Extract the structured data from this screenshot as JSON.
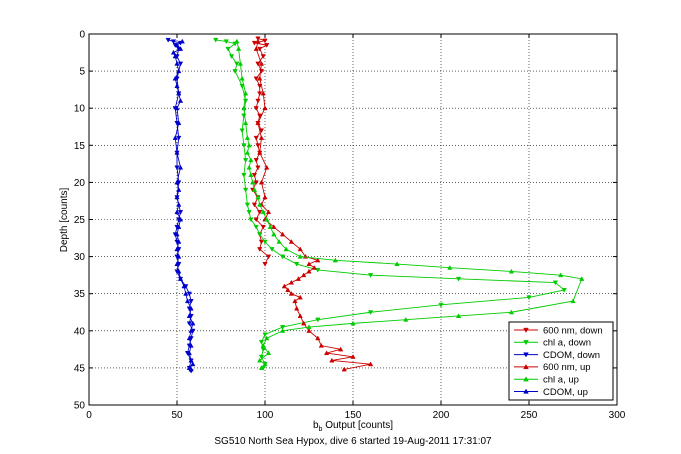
{
  "chart_data": {
    "type": "line",
    "xlabel_main": "b",
    "xlabel_sub": "b",
    "xlabel_rest": " Output [counts]",
    "ylabel": "Depth [counts]",
    "caption": "SG510 North Sea Hypox, dive 6 started 19-Aug-2011 17:31:07",
    "xlim": [
      0,
      300
    ],
    "ylim": [
      0,
      50
    ],
    "y_reversed": true,
    "grid": true,
    "grid_style": "dotted",
    "xticks": [
      0,
      50,
      100,
      150,
      200,
      250,
      300
    ],
    "yticks": [
      0,
      5,
      10,
      15,
      20,
      25,
      30,
      35,
      40,
      45,
      50
    ],
    "legend_position": "bottom-right",
    "series": [
      {
        "name": "600 nm, down",
        "color": "#cc0000",
        "marker": "triangle-down",
        "x": [
          96,
          100,
          94,
          101,
          97,
          99,
          96,
          98,
          95,
          97,
          97,
          96,
          95,
          97,
          96,
          98,
          95,
          96,
          97,
          95,
          96,
          94,
          95,
          93,
          96,
          94,
          97,
          95,
          99,
          97,
          98,
          97,
          102,
          100
        ],
        "y": [
          0.6,
          0.9,
          1.2,
          1.5,
          2.0,
          3.0,
          4.0,
          5.0,
          6.0,
          7.0,
          8.0,
          9.0,
          10.0,
          11.0,
          12.0,
          13.0,
          14.0,
          15.0,
          16.0,
          17.0,
          18.0,
          19.0,
          20.0,
          21.0,
          22.0,
          23.0,
          24.0,
          25.0,
          26.0,
          27.0,
          28.0,
          29.0,
          30.0,
          31.0
        ]
      },
      {
        "name": "chl a, down",
        "color": "#00cc00",
        "marker": "triangle-down",
        "x": [
          72,
          78,
          83,
          79,
          81,
          84,
          83,
          87,
          89,
          88,
          87,
          88,
          89,
          88,
          89,
          90,
          91,
          92,
          95,
          97,
          100,
          104,
          110,
          118,
          130,
          160,
          210,
          265,
          270,
          250,
          200,
          160,
          130,
          110,
          100,
          98,
          99,
          98,
          100,
          99
        ],
        "y": [
          0.8,
          1.0,
          1.3,
          2.0,
          3.0,
          4.0,
          5.0,
          7.0,
          9.0,
          11.0,
          13.0,
          15.0,
          17.0,
          19.0,
          21.0,
          23.0,
          24.0,
          25.0,
          26.0,
          27.0,
          28.0,
          29.0,
          30.0,
          31.0,
          31.8,
          32.5,
          33.0,
          33.5,
          34.5,
          35.5,
          36.5,
          37.5,
          38.5,
          39.5,
          40.5,
          41.5,
          42.5,
          43.5,
          44.5,
          45.0
        ]
      },
      {
        "name": "CDOM, down",
        "color": "#0000cc",
        "marker": "triangle-down",
        "x": [
          45,
          48,
          52,
          49,
          51,
          50,
          52,
          50,
          51,
          49,
          50,
          51,
          50,
          50,
          51,
          50,
          52,
          51,
          50,
          49,
          50,
          51,
          50,
          51,
          50,
          52,
          55,
          57,
          58,
          57,
          58,
          57,
          59,
          58,
          57,
          56,
          58,
          57,
          58
        ],
        "y": [
          0.8,
          1.0,
          1.2,
          1.5,
          2.0,
          3.0,
          4.0,
          6.0,
          8.0,
          10.0,
          12.0,
          14.0,
          16.0,
          18.0,
          20.0,
          22.0,
          24.0,
          25.0,
          26.0,
          27.0,
          28.0,
          29.0,
          30.0,
          31.0,
          32.0,
          33.0,
          34.0,
          35.0,
          36.0,
          37.0,
          38.0,
          39.0,
          40.0,
          41.0,
          42.0,
          43.0,
          44.0,
          45.0,
          45.4
        ]
      },
      {
        "name": "600 nm, up",
        "color": "#cc0000",
        "marker": "triangle-up",
        "x": [
          145,
          160,
          138,
          150,
          135,
          143,
          132,
          130,
          125,
          122,
          120,
          118,
          117,
          120,
          115,
          113,
          111,
          115,
          119,
          122,
          125,
          128,
          125,
          130,
          123,
          120,
          115,
          110,
          105,
          100,
          102,
          98,
          100,
          98,
          101,
          97,
          98,
          96,
          100,
          99,
          97,
          98,
          95,
          96
        ],
        "y": [
          45.2,
          44.5,
          44.0,
          43.5,
          43.0,
          42.5,
          42.0,
          41.0,
          40.0,
          39.0,
          38.0,
          37.0,
          36.0,
          35.5,
          35.0,
          34.5,
          34.0,
          33.5,
          33.0,
          32.5,
          32.0,
          31.5,
          31.0,
          30.5,
          30.0,
          29.0,
          28.0,
          27.0,
          26.0,
          25.0,
          24.0,
          23.0,
          22.0,
          20.0,
          18.0,
          16.0,
          14.0,
          12.0,
          10.0,
          8.0,
          6.0,
          4.0,
          2.0,
          1.0
        ]
      },
      {
        "name": "chl a, up",
        "color": "#00cc00",
        "marker": "triangle-up",
        "x": [
          98,
          100,
          97,
          102,
          99,
          101,
          110,
          125,
          150,
          180,
          210,
          240,
          275,
          280,
          268,
          240,
          205,
          175,
          140,
          120,
          112,
          108,
          105,
          103,
          101,
          99,
          97,
          96,
          94,
          93,
          92,
          91,
          92,
          90,
          91,
          90,
          89,
          88,
          89,
          87,
          86,
          85,
          84
        ],
        "y": [
          45.0,
          44.5,
          44.0,
          43.0,
          42.0,
          41.0,
          40.0,
          39.5,
          39.0,
          38.5,
          38.0,
          37.5,
          36.0,
          33.0,
          32.5,
          32.0,
          31.5,
          31.0,
          30.5,
          30.0,
          29.0,
          28.0,
          27.0,
          26.0,
          25.0,
          24.0,
          23.0,
          22.0,
          21.0,
          20.0,
          19.0,
          18.0,
          17.0,
          16.0,
          15.0,
          14.0,
          12.0,
          10.0,
          8.0,
          6.0,
          4.0,
          2.0,
          1.0
        ]
      },
      {
        "name": "CDOM, up",
        "color": "#0000cc",
        "marker": "triangle-up",
        "x": [
          58,
          57,
          59,
          58,
          57,
          58,
          57,
          58,
          59,
          57,
          58,
          56,
          55,
          54,
          52,
          51,
          50,
          51,
          50,
          51,
          50,
          51,
          52,
          50,
          51,
          50,
          51,
          50,
          52,
          50,
          49,
          51,
          50,
          52,
          51,
          50,
          49,
          51,
          50,
          49,
          48,
          52,
          50,
          53
        ],
        "y": [
          45.2,
          45.0,
          44.5,
          44.0,
          43.0,
          42.0,
          41.0,
          40.0,
          39.0,
          38.0,
          37.0,
          36.0,
          35.0,
          34.0,
          33.0,
          32.0,
          31.0,
          30.0,
          29.0,
          28.0,
          27.0,
          26.0,
          25.0,
          24.0,
          23.0,
          22.0,
          21.0,
          20.0,
          18.0,
          16.0,
          14.0,
          12.0,
          10.0,
          9.0,
          8.0,
          7.0,
          6.0,
          5.0,
          4.0,
          3.0,
          2.5,
          2.0,
          1.5,
          1.0
        ]
      }
    ]
  }
}
